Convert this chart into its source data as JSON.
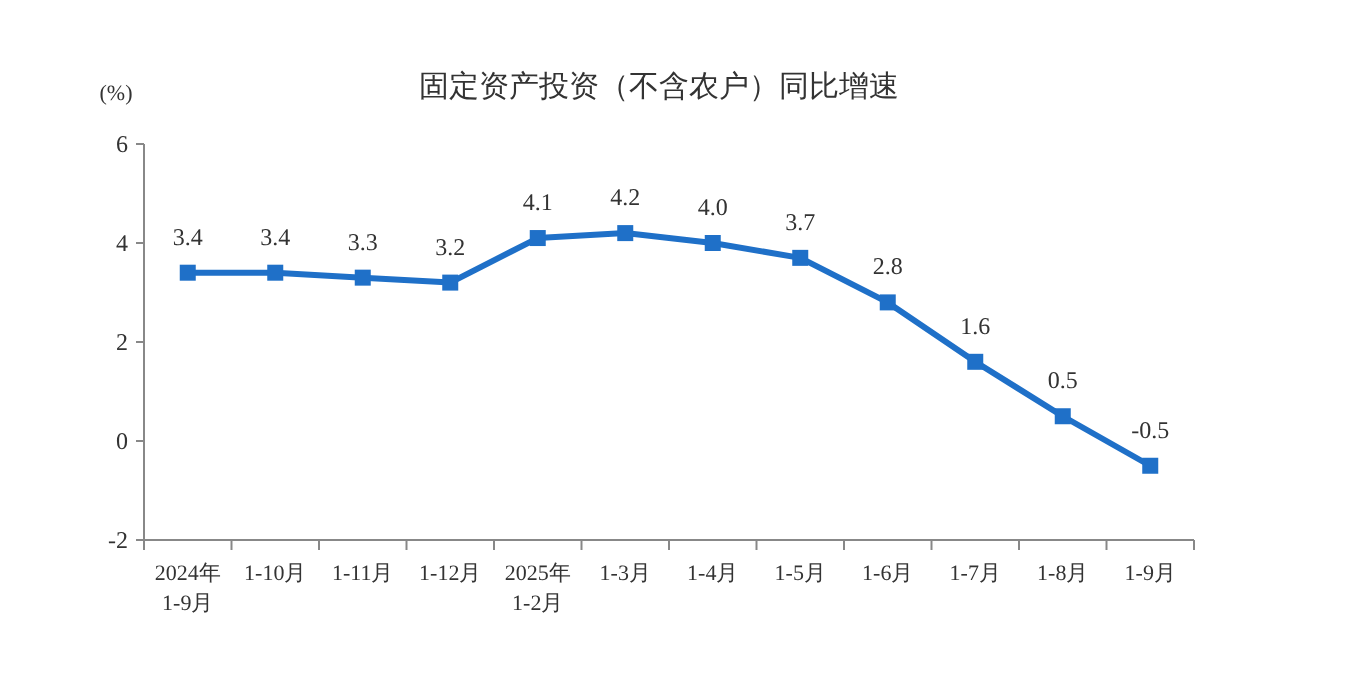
{
  "chart_data": {
    "type": "line",
    "title": "固定资产投资（不含农户）同比增速",
    "ylabel": "(%)",
    "categories": [
      "2024年\n1-9月",
      "1-10月",
      "1-11月",
      "1-12月",
      "2025年\n1-2月",
      "1-3月",
      "1-4月",
      "1-5月",
      "1-6月",
      "1-7月",
      "1-8月",
      "1-9月"
    ],
    "values": [
      3.4,
      3.4,
      3.3,
      3.2,
      4.1,
      4.2,
      4.0,
      3.7,
      2.8,
      1.6,
      0.5,
      -0.5
    ],
    "value_labels": [
      "3.4",
      "3.4",
      "3.3",
      "3.2",
      "4.1",
      "4.2",
      "4.0",
      "3.7",
      "2.8",
      "1.6",
      "0.5",
      "-0.5"
    ],
    "color": "#1f70c8",
    "marker": "square",
    "line_style": "solid",
    "grid": false,
    "ylim": [
      -2,
      6
    ],
    "yticks": [
      -2,
      0,
      2,
      4,
      6
    ]
  }
}
